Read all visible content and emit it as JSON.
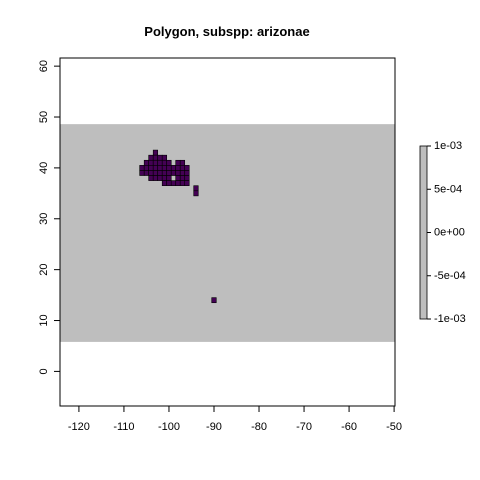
{
  "chart_data": {
    "type": "heatmap",
    "title": "Polygon, subspp: arizonae",
    "xlabel": "",
    "ylabel": "",
    "xlim": [
      -124.2,
      -49.8
    ],
    "ylim": [
      -6.8,
      61.6
    ],
    "x_ticks": [
      -120,
      -110,
      -100,
      -90,
      -80,
      -70,
      -60,
      -50
    ],
    "x_tick_labels": [
      "-120",
      "-110",
      "-100",
      "-90",
      "-80",
      "-70",
      "-60",
      "-50"
    ],
    "y_ticks": [
      0,
      10,
      20,
      30,
      40,
      50,
      60
    ],
    "y_tick_labels": [
      "0",
      "10",
      "20",
      "30",
      "40",
      "50",
      "60"
    ],
    "raster_extent": {
      "xmin": -124.2,
      "xmax": -49.8,
      "ymin": 5.8,
      "ymax": 48.6
    },
    "cell_size": 1.0,
    "background_color": "#bebebe",
    "presence_color": "#440154",
    "presence_cells": [
      [
        -103,
        43
      ],
      [
        -104,
        42
      ],
      [
        -103,
        42
      ],
      [
        -102,
        42
      ],
      [
        -101,
        42
      ],
      [
        -105,
        41
      ],
      [
        -104,
        41
      ],
      [
        -103,
        41
      ],
      [
        -102,
        41
      ],
      [
        -101,
        41
      ],
      [
        -100,
        41
      ],
      [
        -98,
        41
      ],
      [
        -97,
        41
      ],
      [
        -106,
        40
      ],
      [
        -105,
        40
      ],
      [
        -104,
        40
      ],
      [
        -103,
        40
      ],
      [
        -102,
        40
      ],
      [
        -101,
        40
      ],
      [
        -100,
        40
      ],
      [
        -99,
        40
      ],
      [
        -98,
        40
      ],
      [
        -97,
        40
      ],
      [
        -96,
        40
      ],
      [
        -106,
        39
      ],
      [
        -105,
        39
      ],
      [
        -104,
        39
      ],
      [
        -103,
        39
      ],
      [
        -102,
        39
      ],
      [
        -101,
        39
      ],
      [
        -100,
        39
      ],
      [
        -99,
        39
      ],
      [
        -98,
        39
      ],
      [
        -97,
        39
      ],
      [
        -96,
        39
      ],
      [
        -104,
        38
      ],
      [
        -103,
        38
      ],
      [
        -102,
        38
      ],
      [
        -101,
        38
      ],
      [
        -100,
        38
      ],
      [
        -98,
        38
      ],
      [
        -97,
        38
      ],
      [
        -96,
        38
      ],
      [
        -101,
        37
      ],
      [
        -100,
        37
      ],
      [
        -99,
        37
      ],
      [
        -98,
        37
      ],
      [
        -97,
        37
      ],
      [
        -96,
        37
      ],
      [
        -94,
        36
      ],
      [
        -94,
        35
      ],
      [
        -90,
        14
      ]
    ],
    "legend": {
      "position": "right",
      "tick_labels": [
        "1e-03",
        "5e-04",
        "0e+00",
        "-5e-04",
        "-1e-03"
      ],
      "tick_values": [
        0.001,
        0.0005,
        0,
        -0.0005,
        -0.001
      ],
      "range": [
        -0.001,
        0.001
      ],
      "color": "#bebebe"
    }
  }
}
